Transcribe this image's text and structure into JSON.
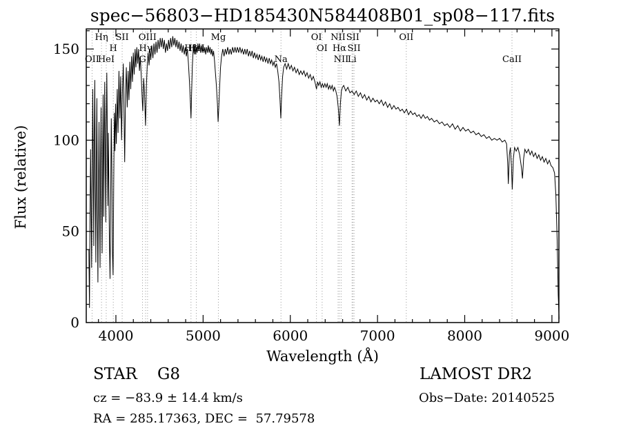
{
  "footer": {
    "class_label": "STAR    G8",
    "survey": "LAMOST DR2",
    "cz": "cz = −83.9 ± 14.4 km/s",
    "obs_date": "Obs−Date: 20140525",
    "coords": "RA = 285.17363, DEC =  57.79578"
  },
  "chart_data": {
    "type": "line",
    "title": "spec−56803−HD185430N584408B01_sp08−117.fits",
    "xlabel": "Wavelength (Å)",
    "ylabel": "Flux (relative)",
    "xlim": [
      3660,
      9080
    ],
    "ylim": [
      0,
      161
    ],
    "xticks": [
      4000,
      5000,
      6000,
      7000,
      8000,
      9000
    ],
    "yticks": [
      0,
      50,
      100,
      150
    ],
    "x_minor_step": 200,
    "y_minor_step": 10,
    "line_color": "#000000",
    "marker_line_color": "#999999",
    "legend": "none",
    "grid": "off",
    "spectral_lines": [
      {
        "label": "OII",
        "wavelength": 3727,
        "row": 3
      },
      {
        "label": "Hη",
        "wavelength": 3835,
        "row": 1
      },
      {
        "label": "HeI",
        "wavelength": 3889,
        "row": 3
      },
      {
        "label": "H",
        "wavelength": 3970,
        "row": 2
      },
      {
        "label": "SII",
        "wavelength": 4072,
        "row": 1
      },
      {
        "label": "G",
        "wavelength": 4305,
        "row": 3
      },
      {
        "label": "Hγ",
        "wavelength": 4340,
        "row": 2
      },
      {
        "label": "OIII",
        "wavelength": 4363,
        "row": 1
      },
      {
        "label": "Hβ",
        "wavelength": 4861,
        "row": 2
      },
      {
        "label": "HeI",
        "wavelength": 4922,
        "row": 2
      },
      {
        "label": "Mg",
        "wavelength": 5175,
        "row": 1
      },
      {
        "label": "Na",
        "wavelength": 5893,
        "row": 3
      },
      {
        "label": "OI",
        "wavelength": 6300,
        "row": 1
      },
      {
        "label": "OI",
        "wavelength": 6365,
        "row": 2
      },
      {
        "label": "NII",
        "wavelength": 6548,
        "row": 1
      },
      {
        "label": "Hα",
        "wavelength": 6563,
        "row": 2
      },
      {
        "label": "NII",
        "wavelength": 6583,
        "row": 3
      },
      {
        "label": "SII",
        "wavelength": 6717,
        "row": 1
      },
      {
        "label": "SII",
        "wavelength": 6731,
        "row": 2
      },
      {
        "label": "Li",
        "wavelength": 6708,
        "row": 3
      },
      {
        "label": "OII",
        "wavelength": 7330,
        "row": 1
      },
      {
        "label": "CaII",
        "wavelength": 8542,
        "row": 3
      }
    ],
    "points": [
      [
        3690,
        40
      ],
      [
        3697,
        8
      ],
      [
        3703,
        55
      ],
      [
        3710,
        95
      ],
      [
        3716,
        60
      ],
      [
        3722,
        30
      ],
      [
        3728,
        82
      ],
      [
        3734,
        128
      ],
      [
        3740,
        88
      ],
      [
        3746,
        42
      ],
      [
        3752,
        100
      ],
      [
        3758,
        133
      ],
      [
        3764,
        78
      ],
      [
        3770,
        33
      ],
      [
        3776,
        90
      ],
      [
        3782,
        123
      ],
      [
        3788,
        57
      ],
      [
        3794,
        22
      ],
      [
        3800,
        72
      ],
      [
        3806,
        110
      ],
      [
        3812,
        66
      ],
      [
        3818,
        30
      ],
      [
        3824,
        86
      ],
      [
        3830,
        118
      ],
      [
        3836,
        70
      ],
      [
        3842,
        38
      ],
      [
        3848,
        95
      ],
      [
        3854,
        125
      ],
      [
        3860,
        58
      ],
      [
        3866,
        98
      ],
      [
        3872,
        132
      ],
      [
        3878,
        92
      ],
      [
        3884,
        55
      ],
      [
        3890,
        108
      ],
      [
        3896,
        137
      ],
      [
        3902,
        100
      ],
      [
        3908,
        64
      ],
      [
        3914,
        104
      ],
      [
        3920,
        70
      ],
      [
        3926,
        44
      ],
      [
        3933,
        24
      ],
      [
        3940,
        68
      ],
      [
        3947,
        112
      ],
      [
        3954,
        80
      ],
      [
        3961,
        38
      ],
      [
        3968,
        26
      ],
      [
        3975,
        76
      ],
      [
        3982,
        115
      ],
      [
        3989,
        94
      ],
      [
        3996,
        120
      ],
      [
        4005,
        98
      ],
      [
        4015,
        128
      ],
      [
        4025,
        104
      ],
      [
        4035,
        138
      ],
      [
        4045,
        112
      ],
      [
        4055,
        135
      ],
      [
        4065,
        100
      ],
      [
        4075,
        126
      ],
      [
        4085,
        142
      ],
      [
        4095,
        108
      ],
      [
        4101,
        88
      ],
      [
        4110,
        125
      ],
      [
        4120,
        140
      ],
      [
        4130,
        118
      ],
      [
        4140,
        138
      ],
      [
        4150,
        122
      ],
      [
        4160,
        143
      ],
      [
        4170,
        128
      ],
      [
        4180,
        146
      ],
      [
        4190,
        132
      ],
      [
        4200,
        148
      ],
      [
        4210,
        136
      ],
      [
        4220,
        150
      ],
      [
        4230,
        140
      ],
      [
        4240,
        151
      ],
      [
        4250,
        142
      ],
      [
        4260,
        150
      ],
      [
        4270,
        138
      ],
      [
        4280,
        146
      ],
      [
        4290,
        136
      ],
      [
        4300,
        124
      ],
      [
        4308,
        116
      ],
      [
        4318,
        134
      ],
      [
        4328,
        126
      ],
      [
        4340,
        108
      ],
      [
        4350,
        130
      ],
      [
        4360,
        142
      ],
      [
        4370,
        148
      ],
      [
        4380,
        141
      ],
      [
        4390,
        150
      ],
      [
        4400,
        144
      ],
      [
        4412,
        152
      ],
      [
        4424,
        145
      ],
      [
        4436,
        153
      ],
      [
        4448,
        147
      ],
      [
        4460,
        154
      ],
      [
        4472,
        148
      ],
      [
        4484,
        155
      ],
      [
        4496,
        150
      ],
      [
        4508,
        156
      ],
      [
        4520,
        151
      ],
      [
        4532,
        156
      ],
      [
        4544,
        150
      ],
      [
        4556,
        155
      ],
      [
        4568,
        148
      ],
      [
        4580,
        153
      ],
      [
        4592,
        149
      ],
      [
        4604,
        155
      ],
      [
        4616,
        150
      ],
      [
        4628,
        156
      ],
      [
        4640,
        151
      ],
      [
        4652,
        157
      ],
      [
        4664,
        152
      ],
      [
        4676,
        156
      ],
      [
        4688,
        151
      ],
      [
        4700,
        155
      ],
      [
        4712,
        150
      ],
      [
        4724,
        154
      ],
      [
        4736,
        149
      ],
      [
        4748,
        153
      ],
      [
        4760,
        148
      ],
      [
        4772,
        152
      ],
      [
        4784,
        147
      ],
      [
        4796,
        151
      ],
      [
        4808,
        146
      ],
      [
        4820,
        150
      ],
      [
        4832,
        142
      ],
      [
        4844,
        132
      ],
      [
        4855,
        120
      ],
      [
        4861,
        112
      ],
      [
        4868,
        126
      ],
      [
        4876,
        140
      ],
      [
        4884,
        148
      ],
      [
        4892,
        151
      ],
      [
        4900,
        147
      ],
      [
        4908,
        152
      ],
      [
        4916,
        147
      ],
      [
        4924,
        151
      ],
      [
        4932,
        148
      ],
      [
        4940,
        153
      ],
      [
        4950,
        149
      ],
      [
        4960,
        153
      ],
      [
        4970,
        148
      ],
      [
        4980,
        152
      ],
      [
        4990,
        148
      ],
      [
        5000,
        152
      ],
      [
        5010,
        148
      ],
      [
        5020,
        151
      ],
      [
        5030,
        147
      ],
      [
        5040,
        151
      ],
      [
        5050,
        148
      ],
      [
        5060,
        152
      ],
      [
        5070,
        148
      ],
      [
        5080,
        151
      ],
      [
        5090,
        147
      ],
      [
        5100,
        150
      ],
      [
        5110,
        146
      ],
      [
        5120,
        149
      ],
      [
        5130,
        144
      ],
      [
        5140,
        138
      ],
      [
        5152,
        130
      ],
      [
        5164,
        120
      ],
      [
        5172,
        110
      ],
      [
        5180,
        118
      ],
      [
        5190,
        130
      ],
      [
        5200,
        140
      ],
      [
        5212,
        146
      ],
      [
        5226,
        150
      ],
      [
        5240,
        146
      ],
      [
        5254,
        150
      ],
      [
        5268,
        147
      ],
      [
        5282,
        151
      ],
      [
        5296,
        147
      ],
      [
        5310,
        150
      ],
      [
        5324,
        147
      ],
      [
        5338,
        151
      ],
      [
        5352,
        148
      ],
      [
        5366,
        151
      ],
      [
        5380,
        148
      ],
      [
        5394,
        151
      ],
      [
        5408,
        148
      ],
      [
        5422,
        151
      ],
      [
        5436,
        148
      ],
      [
        5450,
        150
      ],
      [
        5464,
        147
      ],
      [
        5478,
        150
      ],
      [
        5492,
        147
      ],
      [
        5506,
        150
      ],
      [
        5520,
        146
      ],
      [
        5534,
        149
      ],
      [
        5548,
        146
      ],
      [
        5562,
        149
      ],
      [
        5576,
        145
      ],
      [
        5590,
        148
      ],
      [
        5604,
        145
      ],
      [
        5618,
        147
      ],
      [
        5632,
        144
      ],
      [
        5646,
        147
      ],
      [
        5660,
        144
      ],
      [
        5674,
        146
      ],
      [
        5688,
        143
      ],
      [
        5702,
        146
      ],
      [
        5716,
        143
      ],
      [
        5730,
        145
      ],
      [
        5744,
        142
      ],
      [
        5758,
        145
      ],
      [
        5772,
        142
      ],
      [
        5786,
        144
      ],
      [
        5800,
        141
      ],
      [
        5814,
        143
      ],
      [
        5828,
        140
      ],
      [
        5842,
        142
      ],
      [
        5856,
        138
      ],
      [
        5870,
        132
      ],
      [
        5882,
        122
      ],
      [
        5891,
        112
      ],
      [
        5900,
        124
      ],
      [
        5912,
        135
      ],
      [
        5924,
        140
      ],
      [
        5940,
        142
      ],
      [
        5958,
        139
      ],
      [
        5976,
        142
      ],
      [
        5994,
        139
      ],
      [
        6012,
        141
      ],
      [
        6030,
        138
      ],
      [
        6048,
        140
      ],
      [
        6066,
        137
      ],
      [
        6084,
        139
      ],
      [
        6102,
        136
      ],
      [
        6120,
        138
      ],
      [
        6138,
        136
      ],
      [
        6156,
        138
      ],
      [
        6174,
        135
      ],
      [
        6192,
        137
      ],
      [
        6210,
        134
      ],
      [
        6228,
        136
      ],
      [
        6246,
        133
      ],
      [
        6264,
        135
      ],
      [
        6282,
        132
      ],
      [
        6300,
        128
      ],
      [
        6312,
        132
      ],
      [
        6326,
        130
      ],
      [
        6340,
        132
      ],
      [
        6354,
        129
      ],
      [
        6368,
        131
      ],
      [
        6382,
        129
      ],
      [
        6396,
        131
      ],
      [
        6410,
        129
      ],
      [
        6424,
        131
      ],
      [
        6438,
        128
      ],
      [
        6452,
        130
      ],
      [
        6466,
        128
      ],
      [
        6480,
        130
      ],
      [
        6494,
        127
      ],
      [
        6508,
        129
      ],
      [
        6522,
        127
      ],
      [
        6536,
        124
      ],
      [
        6550,
        118
      ],
      [
        6563,
        108
      ],
      [
        6574,
        120
      ],
      [
        6586,
        127
      ],
      [
        6598,
        129
      ],
      [
        6612,
        130
      ],
      [
        6636,
        127
      ],
      [
        6660,
        129
      ],
      [
        6684,
        126
      ],
      [
        6708,
        127
      ],
      [
        6732,
        125
      ],
      [
        6756,
        127
      ],
      [
        6780,
        124
      ],
      [
        6804,
        126
      ],
      [
        6828,
        123
      ],
      [
        6852,
        125
      ],
      [
        6876,
        122
      ],
      [
        6900,
        124
      ],
      [
        6924,
        121
      ],
      [
        6948,
        123
      ],
      [
        6972,
        121
      ],
      [
        6996,
        122
      ],
      [
        7020,
        120
      ],
      [
        7044,
        122
      ],
      [
        7068,
        119
      ],
      [
        7092,
        121
      ],
      [
        7116,
        118
      ],
      [
        7140,
        120
      ],
      [
        7164,
        117
      ],
      [
        7188,
        119
      ],
      [
        7212,
        117
      ],
      [
        7236,
        118
      ],
      [
        7260,
        116
      ],
      [
        7284,
        117
      ],
      [
        7308,
        115
      ],
      [
        7332,
        117
      ],
      [
        7356,
        114
      ],
      [
        7380,
        116
      ],
      [
        7404,
        114
      ],
      [
        7428,
        115
      ],
      [
        7452,
        113
      ],
      [
        7476,
        114
      ],
      [
        7500,
        112
      ],
      [
        7524,
        114
      ],
      [
        7548,
        112
      ],
      [
        7572,
        113
      ],
      [
        7596,
        111
      ],
      [
        7620,
        112
      ],
      [
        7650,
        110
      ],
      [
        7680,
        111
      ],
      [
        7710,
        109
      ],
      [
        7740,
        110
      ],
      [
        7770,
        108
      ],
      [
        7800,
        109
      ],
      [
        7830,
        107
      ],
      [
        7860,
        109
      ],
      [
        7890,
        106
      ],
      [
        7920,
        108
      ],
      [
        7950,
        105
      ],
      [
        7980,
        107
      ],
      [
        8010,
        105
      ],
      [
        8040,
        106
      ],
      [
        8070,
        104
      ],
      [
        8100,
        105
      ],
      [
        8130,
        103
      ],
      [
        8160,
        104
      ],
      [
        8190,
        102
      ],
      [
        8220,
        103
      ],
      [
        8250,
        101
      ],
      [
        8280,
        102
      ],
      [
        8310,
        100
      ],
      [
        8340,
        101
      ],
      [
        8370,
        100
      ],
      [
        8400,
        101
      ],
      [
        8430,
        99
      ],
      [
        8460,
        100
      ],
      [
        8480,
        98
      ],
      [
        8492,
        88
      ],
      [
        8500,
        76
      ],
      [
        8512,
        92
      ],
      [
        8524,
        96
      ],
      [
        8536,
        86
      ],
      [
        8545,
        73
      ],
      [
        8558,
        90
      ],
      [
        8572,
        96
      ],
      [
        8590,
        94
      ],
      [
        8610,
        96
      ],
      [
        8630,
        92
      ],
      [
        8650,
        85
      ],
      [
        8662,
        79
      ],
      [
        8676,
        90
      ],
      [
        8690,
        95
      ],
      [
        8710,
        93
      ],
      [
        8730,
        95
      ],
      [
        8750,
        92
      ],
      [
        8770,
        94
      ],
      [
        8790,
        91
      ],
      [
        8810,
        93
      ],
      [
        8830,
        90
      ],
      [
        8850,
        92
      ],
      [
        8870,
        89
      ],
      [
        8890,
        91
      ],
      [
        8910,
        88
      ],
      [
        8930,
        90
      ],
      [
        8950,
        87
      ],
      [
        8970,
        89
      ],
      [
        8990,
        86
      ],
      [
        9010,
        85
      ],
      [
        9030,
        82
      ],
      [
        9045,
        70
      ],
      [
        9060,
        45
      ],
      [
        9072,
        15
      ],
      [
        9082,
        2
      ]
    ]
  }
}
